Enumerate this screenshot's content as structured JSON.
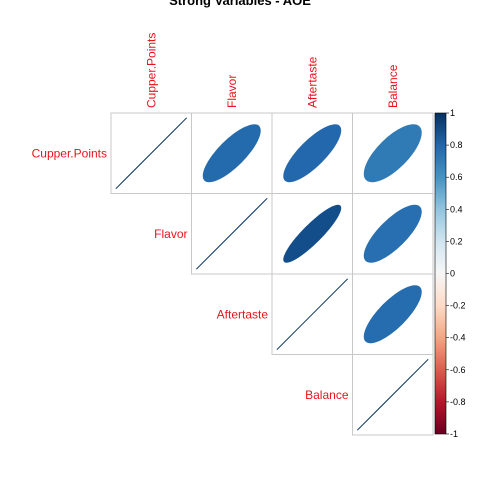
{
  "chart_data": {
    "type": "heatmap",
    "subtype": "correlation-matrix-upper-ellipse",
    "title": "Strong Variables - AOE",
    "variables": [
      "Cupper.Points",
      "Flavor",
      "Aftertaste",
      "Balance"
    ],
    "correlations": [
      [
        1.0,
        0.78,
        0.79,
        0.71
      ],
      [
        0.78,
        1.0,
        0.89,
        0.76
      ],
      [
        0.79,
        0.89,
        1.0,
        0.77
      ],
      [
        0.71,
        0.76,
        0.77,
        1.0
      ]
    ],
    "display": "upper triangle with diagonal; off-diagonal cells drawn as ellipses, diagonal as lines",
    "grid": true,
    "colorbar": {
      "range": [
        -1,
        1
      ],
      "ticks": [
        "1",
        "0.8",
        "0.6",
        "0.4",
        "0.2",
        "0",
        "-0.2",
        "-0.4",
        "-0.6",
        "-0.8",
        "-1"
      ],
      "colors": [
        "#053061",
        "#2166ac",
        "#4393c3",
        "#92c5de",
        "#d1e5f0",
        "#f7f7f7",
        "#fddbc7",
        "#f4a582",
        "#d6604d",
        "#b2182b",
        "#67001f"
      ],
      "placement": "right"
    },
    "label_color": "#e8141c"
  }
}
